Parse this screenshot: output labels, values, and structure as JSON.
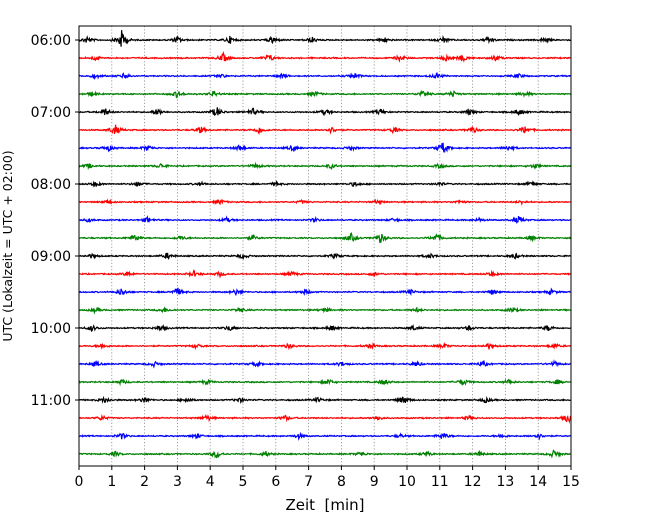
{
  "chart_data": {
    "type": "line",
    "title": "",
    "xlabel": "Zeit  [min]",
    "ylabel": "UTC (Lokalzeit = UTC + 02:00)",
    "xlim": [
      0,
      15
    ],
    "x_ticks": [
      "0",
      "1",
      "2",
      "3",
      "4",
      "5",
      "6",
      "7",
      "8",
      "9",
      "10",
      "11",
      "12",
      "13",
      "14",
      "15"
    ],
    "y_tick_labels": [
      "06:00",
      "07:00",
      "08:00",
      "09:00",
      "10:00",
      "11:00"
    ],
    "grid": "vertical dotted",
    "traces_per_hour": 4,
    "trace_minutes": 15,
    "trace_colors": [
      "#000000",
      "#ff0000",
      "#0000ff",
      "#008000"
    ],
    "series": [
      {
        "start": "06:00",
        "color": "#000000",
        "events": [
          [
            0.25,
            0.6
          ],
          [
            1.3,
            1.6
          ],
          [
            3.0,
            0.5
          ],
          [
            4.6,
            0.6
          ],
          [
            5.9,
            0.6
          ],
          [
            7.1,
            0.5
          ],
          [
            9.3,
            0.5
          ],
          [
            11.1,
            0.5
          ],
          [
            12.5,
            0.5
          ],
          [
            14.2,
            0.4
          ]
        ]
      },
      {
        "start": "06:15",
        "color": "#ff0000",
        "events": [
          [
            0.5,
            0.4
          ],
          [
            4.4,
            0.8
          ],
          [
            5.8,
            0.6
          ],
          [
            9.8,
            0.5
          ],
          [
            11.2,
            0.5
          ],
          [
            11.7,
            0.6
          ],
          [
            12.7,
            0.5
          ]
        ]
      },
      {
        "start": "06:30",
        "color": "#0000ff",
        "events": [
          [
            0.5,
            0.4
          ],
          [
            1.4,
            0.5
          ],
          [
            4.3,
            0.4
          ],
          [
            6.2,
            0.4
          ],
          [
            8.4,
            0.5
          ],
          [
            10.9,
            0.5
          ],
          [
            13.4,
            0.4
          ]
        ]
      },
      {
        "start": "06:45",
        "color": "#008000",
        "events": [
          [
            0.4,
            0.4
          ],
          [
            3.0,
            0.6
          ],
          [
            4.1,
            0.5
          ],
          [
            7.2,
            0.4
          ],
          [
            10.5,
            0.6
          ],
          [
            11.4,
            0.5
          ],
          [
            13.6,
            0.4
          ]
        ]
      },
      {
        "start": "07:00",
        "color": "#000000",
        "events": [
          [
            0.8,
            0.6
          ],
          [
            2.4,
            0.6
          ],
          [
            4.2,
            0.9
          ],
          [
            5.3,
            0.6
          ],
          [
            7.5,
            0.5
          ],
          [
            9.2,
            0.5
          ],
          [
            11.9,
            0.5
          ],
          [
            13.4,
            0.6
          ]
        ]
      },
      {
        "start": "07:15",
        "color": "#ff0000",
        "events": [
          [
            1.1,
            0.9
          ],
          [
            3.7,
            0.6
          ],
          [
            5.5,
            0.6
          ],
          [
            7.7,
            0.5
          ],
          [
            9.6,
            0.5
          ],
          [
            12.0,
            0.5
          ],
          [
            13.6,
            0.7
          ]
        ]
      },
      {
        "start": "07:30",
        "color": "#0000ff",
        "events": [
          [
            0.9,
            0.5
          ],
          [
            2.1,
            0.5
          ],
          [
            4.9,
            0.5
          ],
          [
            6.5,
            0.4
          ],
          [
            8.3,
            0.4
          ],
          [
            11.1,
            1.0
          ],
          [
            13.1,
            0.5
          ]
        ]
      },
      {
        "start": "07:45",
        "color": "#008000",
        "events": [
          [
            0.3,
            0.4
          ],
          [
            2.5,
            0.4
          ],
          [
            5.4,
            0.4
          ],
          [
            7.7,
            0.4
          ],
          [
            11.0,
            0.4
          ],
          [
            13.9,
            0.4
          ]
        ]
      },
      {
        "start": "08:00",
        "color": "#000000",
        "events": [
          [
            0.5,
            0.4
          ],
          [
            1.8,
            0.4
          ],
          [
            3.7,
            0.3
          ],
          [
            6.0,
            0.3
          ],
          [
            8.4,
            0.4
          ],
          [
            11.0,
            0.3
          ],
          [
            13.8,
            0.4
          ]
        ]
      },
      {
        "start": "08:15",
        "color": "#ff0000",
        "events": [
          [
            0.9,
            0.3
          ],
          [
            4.3,
            0.4
          ],
          [
            6.8,
            0.3
          ],
          [
            9.1,
            0.3
          ],
          [
            11.6,
            0.3
          ],
          [
            13.5,
            0.3
          ]
        ]
      },
      {
        "start": "08:30",
        "color": "#0000ff",
        "events": [
          [
            0.3,
            0.3
          ],
          [
            2.1,
            0.5
          ],
          [
            4.5,
            0.4
          ],
          [
            7.2,
            0.3
          ],
          [
            9.6,
            0.3
          ],
          [
            12.2,
            0.3
          ],
          [
            13.4,
            0.6
          ]
        ]
      },
      {
        "start": "08:45",
        "color": "#008000",
        "events": [
          [
            1.7,
            0.6
          ],
          [
            3.1,
            0.4
          ],
          [
            5.3,
            0.4
          ],
          [
            8.3,
            0.7
          ],
          [
            9.2,
            0.8
          ],
          [
            10.9,
            0.7
          ],
          [
            13.8,
            0.4
          ]
        ]
      },
      {
        "start": "09:00",
        "color": "#000000",
        "events": [
          [
            0.4,
            0.4
          ],
          [
            2.7,
            0.5
          ],
          [
            5.0,
            0.4
          ],
          [
            7.8,
            0.4
          ],
          [
            10.7,
            0.4
          ],
          [
            13.3,
            0.4
          ]
        ]
      },
      {
        "start": "09:15",
        "color": "#ff0000",
        "events": [
          [
            1.5,
            0.4
          ],
          [
            3.5,
            0.5
          ],
          [
            4.3,
            0.4
          ],
          [
            6.5,
            0.4
          ],
          [
            9.0,
            0.3
          ],
          [
            12.6,
            0.4
          ]
        ]
      },
      {
        "start": "09:30",
        "color": "#0000ff",
        "events": [
          [
            1.3,
            0.6
          ],
          [
            3.0,
            0.7
          ],
          [
            4.8,
            0.5
          ],
          [
            6.9,
            0.4
          ],
          [
            10.1,
            0.4
          ],
          [
            12.6,
            0.4
          ],
          [
            14.4,
            0.4
          ]
        ]
      },
      {
        "start": "09:45",
        "color": "#008000",
        "events": [
          [
            0.5,
            0.4
          ],
          [
            2.6,
            0.4
          ],
          [
            4.9,
            0.4
          ],
          [
            7.5,
            0.4
          ],
          [
            10.3,
            0.3
          ],
          [
            13.2,
            0.4
          ]
        ]
      },
      {
        "start": "10:00",
        "color": "#000000",
        "events": [
          [
            0.4,
            0.5
          ],
          [
            2.5,
            0.5
          ],
          [
            4.6,
            0.5
          ],
          [
            7.7,
            0.4
          ],
          [
            10.2,
            0.4
          ],
          [
            11.9,
            0.4
          ],
          [
            14.3,
            0.5
          ]
        ]
      },
      {
        "start": "10:15",
        "color": "#ff0000",
        "events": [
          [
            0.7,
            0.4
          ],
          [
            3.6,
            0.4
          ],
          [
            6.4,
            0.4
          ],
          [
            8.9,
            0.4
          ],
          [
            11.1,
            0.4
          ],
          [
            12.5,
            0.5
          ],
          [
            14.5,
            0.4
          ]
        ]
      },
      {
        "start": "10:30",
        "color": "#0000ff",
        "events": [
          [
            0.5,
            0.4
          ],
          [
            2.3,
            0.4
          ],
          [
            5.4,
            0.4
          ],
          [
            8.0,
            0.4
          ],
          [
            10.3,
            0.4
          ],
          [
            12.3,
            0.5
          ],
          [
            14.5,
            0.4
          ]
        ]
      },
      {
        "start": "10:45",
        "color": "#008000",
        "events": [
          [
            1.3,
            0.4
          ],
          [
            3.9,
            0.4
          ],
          [
            7.6,
            0.5
          ],
          [
            9.3,
            0.5
          ],
          [
            11.7,
            0.6
          ],
          [
            13.1,
            0.4
          ],
          [
            14.6,
            0.4
          ]
        ]
      },
      {
        "start": "11:00",
        "color": "#000000",
        "events": [
          [
            0.8,
            0.5
          ],
          [
            2.0,
            0.5
          ],
          [
            3.3,
            0.4
          ],
          [
            4.9,
            0.4
          ],
          [
            7.3,
            0.4
          ],
          [
            9.9,
            0.7
          ],
          [
            12.4,
            0.4
          ]
        ]
      },
      {
        "start": "11:15",
        "color": "#ff0000",
        "events": [
          [
            0.7,
            0.4
          ],
          [
            3.9,
            0.5
          ],
          [
            6.3,
            0.4
          ],
          [
            9.1,
            0.4
          ],
          [
            11.9,
            0.4
          ],
          [
            14.9,
            0.8
          ]
        ]
      },
      {
        "start": "11:30",
        "color": "#0000ff",
        "events": [
          [
            1.3,
            0.5
          ],
          [
            3.6,
            0.4
          ],
          [
            6.7,
            0.4
          ],
          [
            9.8,
            0.3
          ],
          [
            11.1,
            0.6
          ],
          [
            12.9,
            0.3
          ],
          [
            14.0,
            0.5
          ]
        ]
      },
      {
        "start": "11:45",
        "color": "#008000",
        "events": [
          [
            1.1,
            0.4
          ],
          [
            4.2,
            0.7
          ],
          [
            5.7,
            0.4
          ],
          [
            8.6,
            0.4
          ],
          [
            10.6,
            0.4
          ],
          [
            12.2,
            0.4
          ],
          [
            14.5,
            0.7
          ]
        ]
      }
    ]
  }
}
